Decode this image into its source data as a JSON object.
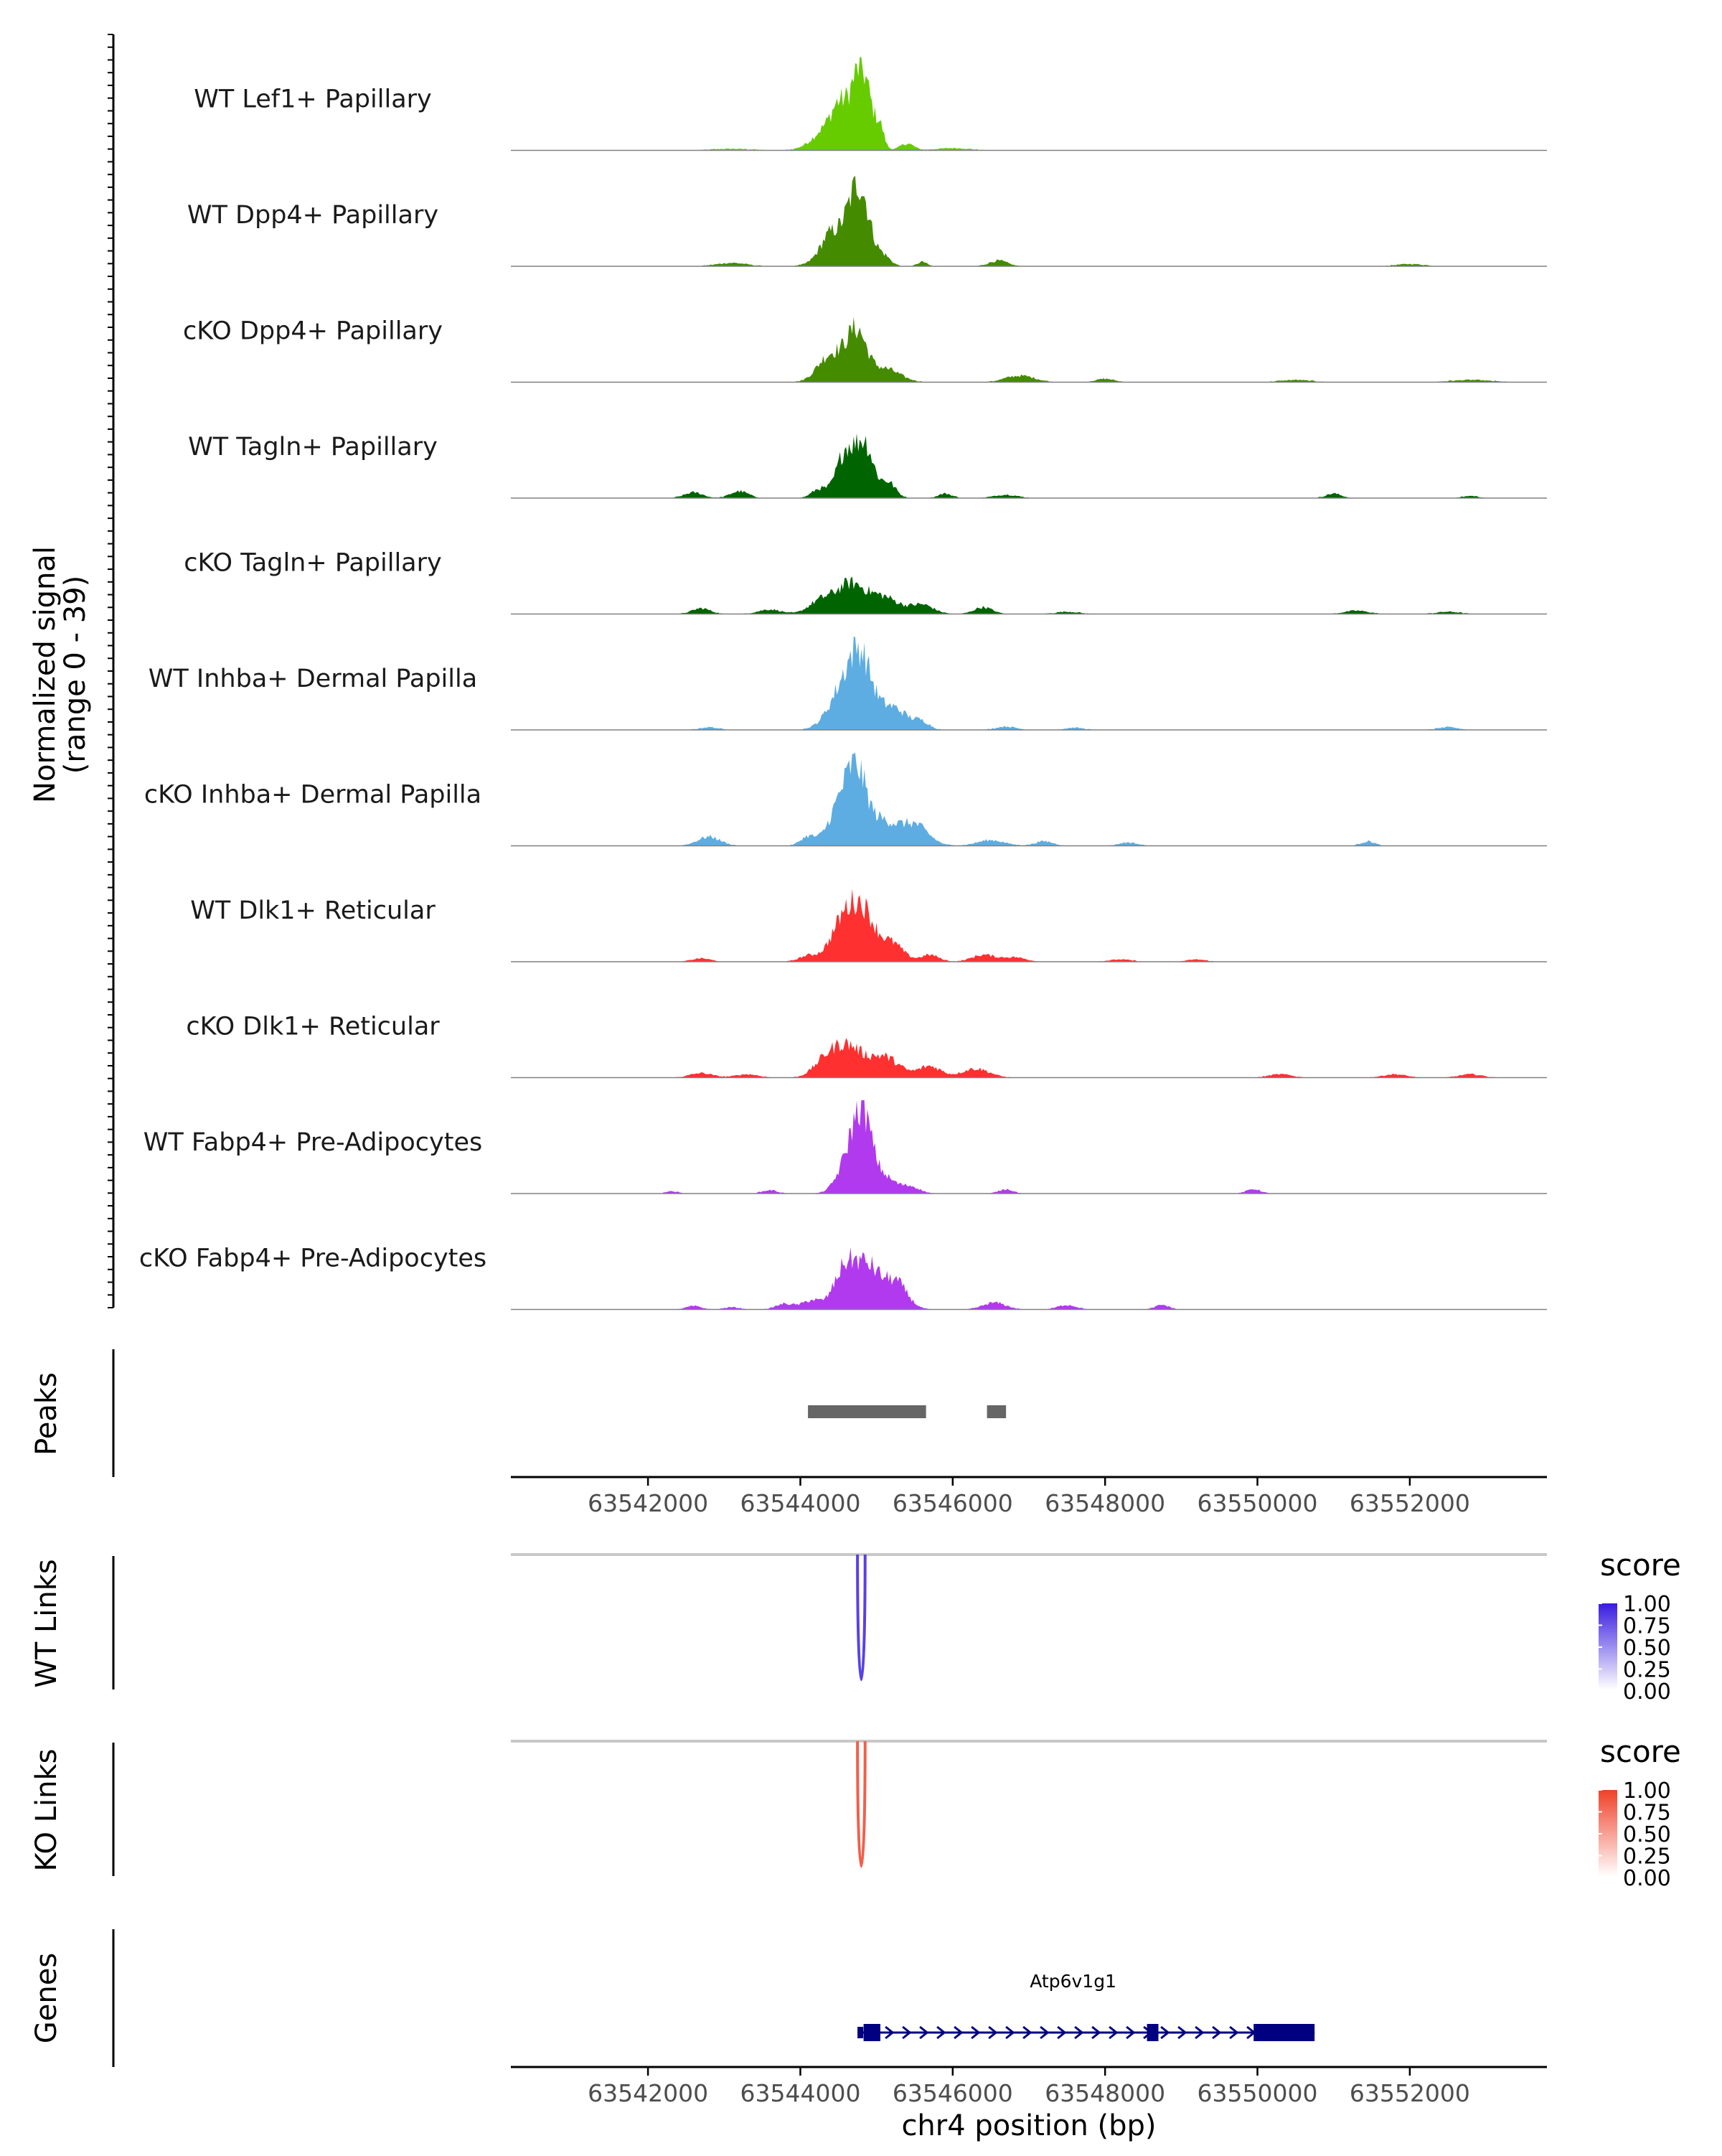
{
  "chart_data": {
    "type": "area",
    "title": "",
    "chromosome": "chr4",
    "xlabel": "chr4 position (bp)",
    "xlim": [
      63540200,
      63553800
    ],
    "x_ticks": [
      63542000,
      63544000,
      63546000,
      63548000,
      63550000,
      63552000
    ],
    "x_tick_labels": [
      "63542000",
      "63544000",
      "63546000",
      "63548000",
      "63550000",
      "63552000"
    ],
    "coverage": {
      "ylabel_line1": "Normalized signal",
      "ylabel_line2": "(range 0 - 39)",
      "ylim": [
        0,
        39
      ],
      "tracks": [
        {
          "name": "WT Lef1+ Papillary",
          "color": "#66CC00",
          "peaks": [
            [
              63544450,
              13,
              220
            ],
            [
              63544800,
              33,
              130
            ],
            [
              63544500,
              7,
              80
            ],
            [
              63545050,
              7,
              50
            ],
            [
              63545400,
              3,
              90
            ],
            [
              63546000,
              1,
              220
            ],
            [
              63543100,
              0.7,
              250
            ]
          ],
          "noise": 0.5
        },
        {
          "name": "WT Dpp4+ Papillary",
          "color": "#458B00",
          "peaks": [
            [
              63544500,
              14,
              200
            ],
            [
              63544780,
              31,
              130
            ],
            [
              63544350,
              3,
              90
            ],
            [
              63545100,
              4,
              90
            ],
            [
              63545600,
              2,
              60
            ],
            [
              63546600,
              2.5,
              120
            ],
            [
              63543100,
              1.5,
              200
            ],
            [
              63552000,
              1,
              180
            ]
          ],
          "noise": 0.5
        },
        {
          "name": "cKO Dpp4+ Papillary",
          "color": "#458B00",
          "peaks": [
            [
              63544500,
              12,
              200
            ],
            [
              63544750,
              17,
              120
            ],
            [
              63545100,
              6,
              200
            ],
            [
              63544300,
              3,
              120
            ],
            [
              63546800,
              2,
              160
            ],
            [
              63547000,
              1.5,
              150
            ],
            [
              63548000,
              1.5,
              120
            ],
            [
              63550500,
              1,
              200
            ],
            [
              63552800,
              1,
              250
            ]
          ],
          "noise": 0.6
        },
        {
          "name": "WT Tagln+ Papillary",
          "color": "#006400",
          "peaks": [
            [
              63544600,
              21,
              120
            ],
            [
              63544850,
              23,
              110
            ],
            [
              63545150,
              7,
              100
            ],
            [
              63544250,
              4,
              100
            ],
            [
              63543200,
              3,
              120
            ],
            [
              63542600,
              2.5,
              120
            ],
            [
              63545900,
              2,
              90
            ],
            [
              63546700,
              1.5,
              150
            ],
            [
              63551000,
              2,
              100
            ],
            [
              63552800,
              1,
              100
            ]
          ],
          "noise": 0.8
        },
        {
          "name": "cKO Tagln+ Papillary",
          "color": "#006400",
          "peaks": [
            [
              63544650,
              13,
              200
            ],
            [
              63544250,
              5,
              150
            ],
            [
              63545100,
              7,
              200
            ],
            [
              63545600,
              4,
              150
            ],
            [
              63546400,
              3,
              120
            ],
            [
              63542700,
              2.5,
              120
            ],
            [
              63543600,
              2,
              150
            ],
            [
              63547500,
              1,
              150
            ],
            [
              63551300,
              1.5,
              150
            ],
            [
              63552500,
              1,
              150
            ]
          ],
          "noise": 0.9
        },
        {
          "name": "WT Inhba+ Dermal Papilla",
          "color": "#5DADE2",
          "peaks": [
            [
              63544600,
              20,
              200
            ],
            [
              63544800,
              22,
              140
            ],
            [
              63545200,
              10,
              200
            ],
            [
              63545600,
              3,
              100
            ],
            [
              63546700,
              1.5,
              130
            ],
            [
              63547600,
              1,
              120
            ],
            [
              63552500,
              1.2,
              130
            ],
            [
              63542800,
              1.2,
              120
            ]
          ],
          "noise": 0.5
        },
        {
          "name": "cKO Inhba+ Dermal Papilla",
          "color": "#5DADE2",
          "peaks": [
            [
              63544550,
              20,
              160
            ],
            [
              63544750,
              23,
              120
            ],
            [
              63545050,
              11,
              200
            ],
            [
              63545500,
              9,
              180
            ],
            [
              63542800,
              4,
              150
            ],
            [
              63546500,
              2.5,
              180
            ],
            [
              63547200,
              2,
              120
            ],
            [
              63551450,
              2,
              90
            ],
            [
              63544100,
              4,
              100
            ],
            [
              63548300,
              1.5,
              120
            ]
          ],
          "noise": 0.5
        },
        {
          "name": "WT Dlk1+ Reticular",
          "color": "#FF3030",
          "peaks": [
            [
              63544600,
              20,
              180
            ],
            [
              63544850,
              16,
              150
            ],
            [
              63545200,
              8,
              150
            ],
            [
              63545700,
              3,
              120
            ],
            [
              63546400,
              3,
              150
            ],
            [
              63546800,
              2,
              150
            ],
            [
              63544100,
              2.5,
              120
            ],
            [
              63542700,
              1.5,
              120
            ],
            [
              63548200,
              1,
              150
            ],
            [
              63549200,
              1,
              120
            ]
          ],
          "noise": 0.6
        },
        {
          "name": "cKO Dlk1+ Reticular",
          "color": "#FF3030",
          "peaks": [
            [
              63544600,
              14,
              200
            ],
            [
              63544300,
              5,
              150
            ],
            [
              63545100,
              9,
              200
            ],
            [
              63545700,
              5,
              150
            ],
            [
              63546300,
              4,
              180
            ],
            [
              63542700,
              2,
              150
            ],
            [
              63543300,
              1.5,
              150
            ],
            [
              63550300,
              1.5,
              150
            ],
            [
              63551800,
              1.5,
              150
            ],
            [
              63552800,
              1.5,
              150
            ]
          ],
          "noise": 0.7
        },
        {
          "name": "WT Fabp4+ Pre-Adipocytes",
          "color": "#B23AEE",
          "peaks": [
            [
              63544650,
              15,
              150
            ],
            [
              63544820,
              29,
              120
            ],
            [
              63545100,
              7,
              150
            ],
            [
              63545450,
              3,
              120
            ],
            [
              63543600,
              1.5,
              100
            ],
            [
              63546700,
              2,
              90
            ],
            [
              63549950,
              2,
              90
            ],
            [
              63542300,
              1,
              90
            ]
          ],
          "noise": 0.5
        },
        {
          "name": "cKO Fabp4+ Pre-Adipocytes",
          "color": "#B23AEE",
          "peaks": [
            [
              63544600,
              19,
              150
            ],
            [
              63544900,
              17,
              150
            ],
            [
              63545250,
              12,
              150
            ],
            [
              63544150,
              4,
              120
            ],
            [
              63543800,
              2.5,
              120
            ],
            [
              63546550,
              3,
              150
            ],
            [
              63547500,
              2,
              120
            ],
            [
              63548750,
              2,
              90
            ],
            [
              63542600,
              1.5,
              100
            ],
            [
              63543100,
              1,
              100
            ]
          ],
          "noise": 0.6
        }
      ]
    },
    "peaks_track": {
      "label": "Peaks",
      "regions": [
        [
          63544100,
          63545650
        ],
        [
          63546450,
          63546700
        ]
      ],
      "color": "#666666"
    },
    "links": [
      {
        "label": "WT Links",
        "legend_title": "score",
        "legend_ticks": [
          "1.00",
          "0.75",
          "0.50",
          "0.25",
          "0.00"
        ],
        "color_high": "#3B1FE0",
        "color_low": "#FFFFFF",
        "link": {
          "start": 63544750,
          "end": 63544850,
          "score": 0.85
        }
      },
      {
        "label": "KO Links",
        "legend_title": "score",
        "legend_ticks": [
          "1.00",
          "0.75",
          "0.50",
          "0.25",
          "0.00"
        ],
        "color_high": "#F0432B",
        "color_low": "#FFFFFF",
        "link": {
          "start": 63544750,
          "end": 63544850,
          "score": 0.85
        }
      }
    ],
    "genes": {
      "label": "Genes",
      "gene_name": "Atp6v1g1",
      "strand": "+",
      "color": "#000080",
      "start": 63544750,
      "end": 63550750,
      "exons": [
        [
          63544750,
          63544800
        ],
        [
          63544830,
          63545050
        ],
        [
          63548550,
          63548700
        ],
        [
          63549950,
          63550750
        ]
      ]
    }
  }
}
